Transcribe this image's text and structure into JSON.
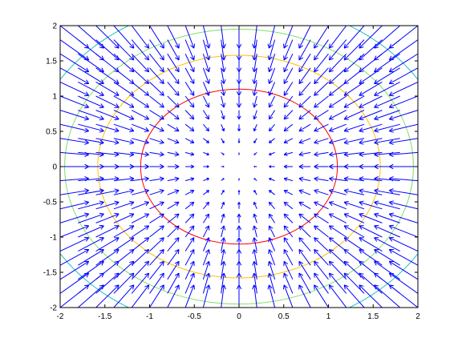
{
  "chart_data": {
    "type": "quiver",
    "title": "",
    "xlabel": "",
    "ylabel": "",
    "xlim": [
      -2,
      2
    ],
    "ylim": [
      -2,
      2
    ],
    "grid": false,
    "xticks": [
      -2,
      -1.5,
      -1,
      -0.5,
      0,
      0.5,
      1,
      1.5,
      2
    ],
    "yticks": [
      -2,
      -1.5,
      -1,
      -0.5,
      0,
      0.5,
      1,
      1.5,
      2
    ],
    "xtick_labels": [
      "-2",
      "-1.5",
      "-1",
      "-0.5",
      "0",
      "0.5",
      "1",
      "1.5",
      "2"
    ],
    "ytick_labels": [
      "-2",
      "-1.5",
      "-1",
      "-0.5",
      "0",
      "0.5",
      "1",
      "1.5",
      "2"
    ],
    "vector_field": {
      "grid_range": [
        -2,
        2
      ],
      "grid_step": 0.2,
      "field": "gradient of -(x^2 + y^2), arrows point toward origin",
      "color": "#0000ff"
    },
    "contours": [
      {
        "level": "inner",
        "radius": 1.1,
        "color": "#ff0000"
      },
      {
        "level": "middle",
        "radius": 1.58,
        "color": "#ffbf00"
      },
      {
        "level": "outer",
        "radius": 1.95,
        "color": "#7fdf60"
      },
      {
        "level": "outermost",
        "radius": 2.35,
        "color": "#20c0c0"
      }
    ]
  }
}
